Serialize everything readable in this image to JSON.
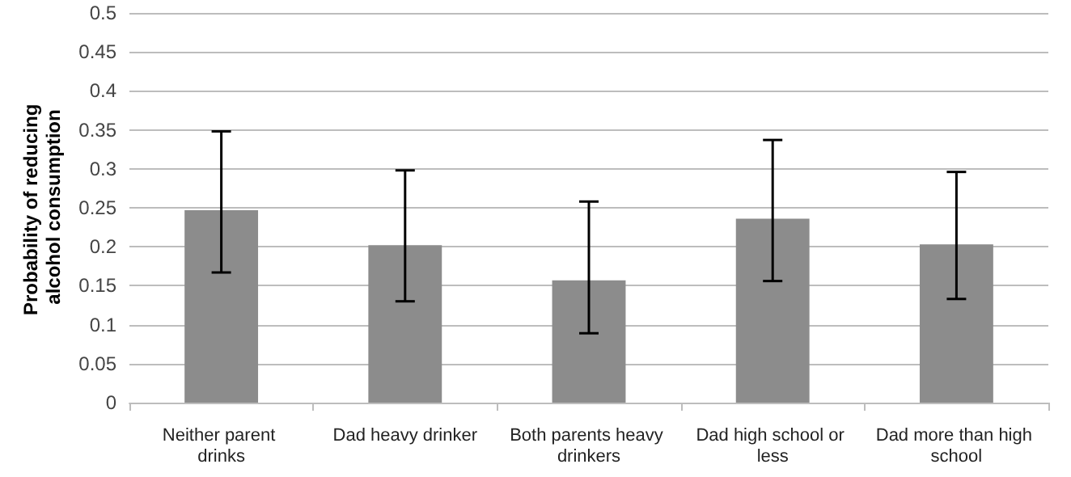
{
  "chart_data": {
    "type": "bar",
    "ylabel": "Probability of reducing alcohol consumption",
    "categories": [
      "Neither parent drinks",
      "Dad heavy drinker",
      "Both parents heavy drinkers",
      "Dad high school or less",
      "Dad more than high school"
    ],
    "values": [
      0.247,
      0.202,
      0.157,
      0.236,
      0.203
    ],
    "errors": [
      [
        0.167,
        0.348
      ],
      [
        0.13,
        0.298
      ],
      [
        0.089,
        0.258
      ],
      [
        0.156,
        0.337
      ],
      [
        0.133,
        0.296
      ]
    ],
    "color": "#8c8c8c",
    "ylim": [
      0,
      0.5
    ],
    "yticks": [
      0,
      0.05,
      0.1,
      0.15,
      0.2,
      0.25,
      0.3,
      0.35,
      0.4,
      0.45,
      0.5
    ],
    "grid": "y"
  }
}
